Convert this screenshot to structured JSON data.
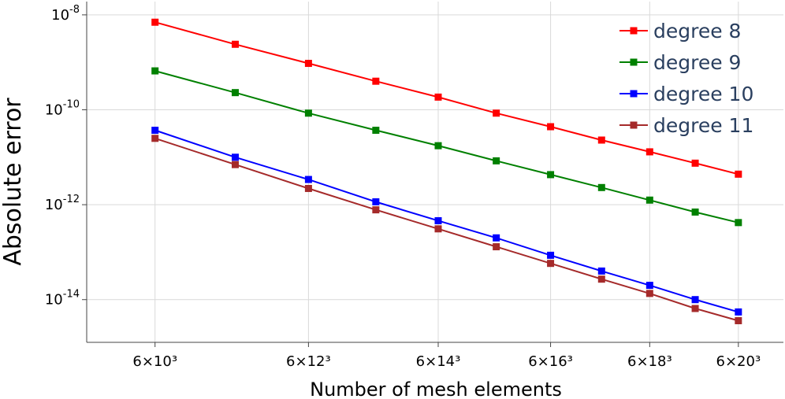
{
  "chart_data": {
    "type": "line",
    "title": "",
    "xlabel": "Number of mesh elements",
    "ylabel": "Absolute error",
    "x_scale": "log",
    "y_scale": "log",
    "x": [
      10,
      11,
      12,
      13,
      14,
      15,
      16,
      17,
      18,
      19,
      20
    ],
    "xticks": [
      {
        "n": 10,
        "label": "6×10³"
      },
      {
        "n": 12,
        "label": "6×12³"
      },
      {
        "n": 14,
        "label": "6×14³"
      },
      {
        "n": 16,
        "label": "6×16³"
      },
      {
        "n": 18,
        "label": "6×18³"
      },
      {
        "n": 20,
        "label": "6×20³"
      }
    ],
    "yticks": [
      {
        "exp": -8,
        "base": "10",
        "sup": "-8"
      },
      {
        "exp": -10,
        "base": "10",
        "sup": "-10"
      },
      {
        "exp": -12,
        "base": "10",
        "sup": "-12"
      },
      {
        "exp": -14,
        "base": "10",
        "sup": "-14"
      }
    ],
    "xlim_exp": [
      9.22,
      21.1
    ],
    "ylim_exp": [
      -7.72,
      -14.9
    ],
    "grid": true,
    "legend_position": "top-right",
    "series": [
      {
        "name": "degree 8",
        "color": "#ff0000",
        "values": [
          7e-09,
          2.4e-09,
          9.5e-10,
          4e-10,
          1.85e-10,
          8.5e-11,
          4.4e-11,
          2.3e-11,
          1.3e-11,
          7.5e-12,
          4.4e-12
        ]
      },
      {
        "name": "degree 9",
        "color": "#008000",
        "values": [
          6.6e-10,
          2.3e-10,
          8.5e-11,
          3.7e-11,
          1.75e-11,
          8.4e-12,
          4.3e-12,
          2.3e-12,
          1.25e-12,
          7e-13,
          4.2e-13
        ]
      },
      {
        "name": "degree 10",
        "color": "#0000ff",
        "values": [
          3.7e-11,
          1e-11,
          3.4e-12,
          1.15e-12,
          4.6e-13,
          2e-13,
          8.6e-14,
          4e-14,
          2e-14,
          1e-14,
          5.5e-15
        ]
      },
      {
        "name": "degree 11",
        "color": "#a52a2a",
        "values": [
          2.5e-11,
          7e-12,
          2.2e-12,
          7.8e-13,
          3.1e-13,
          1.3e-13,
          5.8e-14,
          2.7e-14,
          1.35e-14,
          6.5e-15,
          3.6e-15
        ]
      }
    ]
  }
}
